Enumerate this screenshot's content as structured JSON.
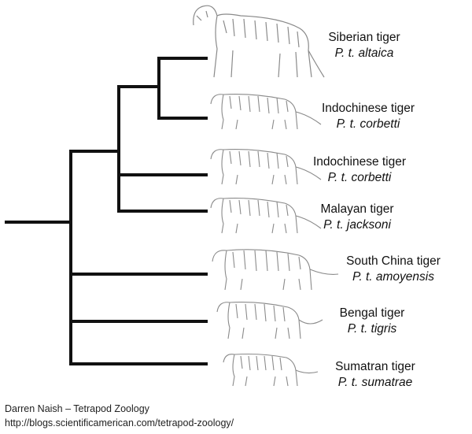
{
  "taxa": [
    {
      "id": "siberian",
      "common_name": "Siberian tiger",
      "scientific_name": "P. t. altaica"
    },
    {
      "id": "indochinese-1",
      "common_name": "Indochinese tiger",
      "scientific_name": "P. t. corbetti"
    },
    {
      "id": "indochinese-2",
      "common_name": "Indochinese tiger",
      "scientific_name": "P. t. corbetti"
    },
    {
      "id": "malayan",
      "common_name": "Malayan tiger",
      "scientific_name": "P. t. jacksoni"
    },
    {
      "id": "south-china",
      "common_name": "South China tiger",
      "scientific_name": "P. t. amoyensis"
    },
    {
      "id": "bengal",
      "common_name": "Bengal tiger",
      "scientific_name": "P. t. tigris"
    },
    {
      "id": "sumatran",
      "common_name": "Sumatran tiger",
      "scientific_name": "P. t. sumatrae"
    }
  ],
  "credit": {
    "author": "Darren Naish – Tetrapod Zoology",
    "url": "http://blogs.scientificamerican.com/tetrapod-zoology/"
  },
  "colors": {
    "branch": "#111111",
    "tiger_sketch": "#8a8a8a"
  },
  "illustration": "tiger-sketch-icon"
}
